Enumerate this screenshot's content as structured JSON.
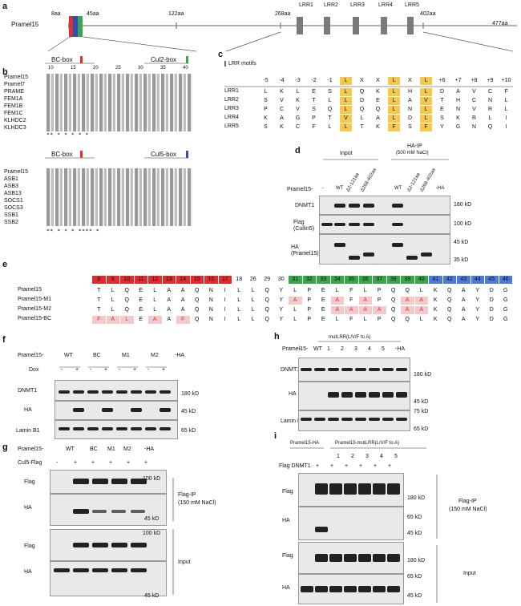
{
  "a": {
    "label": "a",
    "protein": "Pramel15",
    "pos_8": "8aa",
    "pos_45": "45aa",
    "pos_122": "122aa",
    "pos_268": "268aa",
    "pos_402": "402aa",
    "pos_477": "477aa",
    "lrr": [
      "LRR1",
      "LRR2",
      "LRR3",
      "LRR4",
      "LRR5"
    ]
  },
  "b": {
    "label": "b",
    "bc_box": "BC-box",
    "cul2_box": "Cul2-box",
    "cul5_box": "Cul5-box",
    "ticks_top": [
      "10",
      "15",
      "20",
      "25",
      "30",
      "35",
      "40"
    ],
    "names_top": [
      "Pramel15",
      "Pramel7",
      "PRAME",
      "FEM1A",
      "FEM1B",
      "FEM1C",
      "KLHDC2",
      "KLHDC3"
    ],
    "names_bottom": [
      "Pramel15",
      "ASB1",
      "ASB3",
      "ASB13",
      "SOCS1",
      "SOCS3",
      "SSB1",
      "SSB2"
    ],
    "stars_top": "**  *   *          *  *   *",
    "stars_bottom": "**  *   *         *   ****  *"
  },
  "c": {
    "label": "c",
    "title": "LRR motifs",
    "positions": [
      "-5",
      "-4",
      "-3",
      "-2",
      "-1",
      "L",
      "X",
      "X",
      "L",
      "X",
      "L",
      "+6",
      "+7",
      "+8",
      "+9",
      "+10"
    ],
    "rows": [
      {
        "name": "LRR1",
        "res": [
          "L",
          "K",
          "L",
          "E",
          "S",
          "L",
          "Q",
          "K",
          "L",
          "H",
          "L",
          "D",
          "A",
          "V",
          "C",
          "F"
        ]
      },
      {
        "name": "LRR2",
        "res": [
          "S",
          "V",
          "K",
          "T",
          "L",
          "L",
          "D",
          "E",
          "L",
          "A",
          "V",
          "T",
          "H",
          "C",
          "N",
          "L"
        ]
      },
      {
        "name": "LRR3",
        "res": [
          "P",
          "C",
          "V",
          "S",
          "Q",
          "L",
          "Q",
          "Q",
          "L",
          "N",
          "L",
          "E",
          "N",
          "V",
          "R",
          "L"
        ]
      },
      {
        "name": "LRR4",
        "res": [
          "K",
          "A",
          "G",
          "P",
          "T",
          "V",
          "L",
          "A",
          "L",
          "D",
          "L",
          "S",
          "K",
          "R",
          "L",
          "I"
        ]
      },
      {
        "name": "LRR5",
        "res": [
          "S",
          "K",
          "C",
          "F",
          "L",
          "L",
          "T",
          "K",
          "F",
          "S",
          "F",
          "Y",
          "G",
          "N",
          "Q",
          "I"
        ]
      }
    ]
  },
  "d": {
    "label": "d",
    "input": "Input",
    "ip": "HA-IP",
    "ip_cond": "(500 mM NaCl)",
    "row_label": "Pramel15-",
    "lanes": [
      "-",
      "WT",
      "Δ2-121aa",
      "Δ268-402aa",
      "WT",
      "Δ2-121aa",
      "Δ268-402aa",
      "-HA"
    ],
    "blots": [
      "DNMT1",
      "Flag\n(Cullin5)",
      "HA\n(Pramel15)"
    ],
    "mw": [
      "180 kD",
      "100 kD",
      "45 kD",
      "35 kD"
    ]
  },
  "e": {
    "label": "e",
    "header": [
      "8",
      "9",
      "10",
      "11",
      "12",
      "13",
      "14",
      "15",
      "16",
      "17",
      "18",
      "26",
      "29",
      "30",
      "31",
      "32",
      "33",
      "34",
      "35",
      "36",
      "37",
      "38",
      "39",
      "40",
      "41",
      "42",
      "43",
      "44",
      "45",
      "46"
    ],
    "rows": [
      {
        "name": "Pramel15",
        "res": [
          "T",
          "L",
          "Q",
          "E",
          "L",
          "A",
          "A",
          "Q",
          "N",
          "I",
          "L",
          "L",
          "Q",
          "Y",
          "L",
          "P",
          "E",
          "L",
          "F",
          "L",
          "P",
          "Q",
          "Q",
          "L",
          "K",
          "Q",
          "A",
          "Y",
          "D",
          "G"
        ]
      },
      {
        "name": "Pramel15-M1",
        "res": [
          "T",
          "L",
          "Q",
          "E",
          "L",
          "A",
          "A",
          "Q",
          "N",
          "I",
          "L",
          "L",
          "Q",
          "Y",
          "A",
          "P",
          "E",
          "A",
          "F",
          "A",
          "P",
          "Q",
          "A",
          "A",
          "K",
          "Q",
          "A",
          "Y",
          "D",
          "G"
        ]
      },
      {
        "name": "Pramel15-M2",
        "res": [
          "T",
          "L",
          "Q",
          "E",
          "L",
          "A",
          "A",
          "Q",
          "N",
          "I",
          "L",
          "L",
          "Q",
          "Y",
          "L",
          "P",
          "E",
          "A",
          "A",
          "A",
          "A",
          "Q",
          "A",
          "A",
          "K",
          "Q",
          "A",
          "Y",
          "D",
          "G"
        ]
      },
      {
        "name": "Pramel15-BC",
        "res": [
          "F",
          "A",
          "L",
          "E",
          "A",
          "A",
          "F",
          "Q",
          "N",
          "I",
          "L",
          "L",
          "Q",
          "Y",
          "L",
          "P",
          "E",
          "L",
          "F",
          "L",
          "P",
          "Q",
          "Q",
          "L",
          "K",
          "Q",
          "A",
          "Y",
          "D",
          "G"
        ]
      }
    ]
  },
  "f": {
    "label": "f",
    "row1": "Pramel15-",
    "row2": "Dox",
    "groups": [
      "WT",
      "BC",
      "M1",
      "M2"
    ],
    "ctrl": "-HA",
    "signs": [
      "-",
      "+",
      "-",
      "+",
      "-",
      "+",
      "-",
      "+"
    ],
    "blots": [
      "DNMT1",
      "HA",
      "Lamin B1"
    ],
    "mw": [
      "180 kD",
      "45 kD",
      "65 kD"
    ]
  },
  "g": {
    "label": "g",
    "row1": "Pramel15-",
    "row2": "Cul5-Flag",
    "lanes": [
      "WT",
      "BC",
      "M1",
      "M2",
      "-HA"
    ],
    "signs": [
      "-",
      "+",
      "+",
      "+",
      "+",
      "+"
    ],
    "blots": [
      "Flag",
      "HA",
      "Flag",
      "HA"
    ],
    "ip": "Flag-IP",
    "ip_cond": "(150 mM NaCl)",
    "input": "Input",
    "mw": [
      "100 kD",
      "45 kD",
      "100 kD",
      "45 kD"
    ]
  },
  "h": {
    "label": "h",
    "row1": "Pramel15-",
    "mut": "mutLRR(L/V/F to A)",
    "lanes": [
      "-",
      "WT",
      "1",
      "2",
      "3",
      "4",
      "5",
      "-HA"
    ],
    "blots": [
      "DNMT1",
      "HA",
      "Lamin B1"
    ],
    "mw": [
      "180 kD",
      "45 kD",
      "75 kD",
      "65 kD"
    ]
  },
  "i": {
    "label": "i",
    "g1": "Pramel15-HA",
    "g2": "Pramel15-mutLRR(L/V/F to A)",
    "row2": "Flag DNMT1",
    "nums": [
      "1",
      "2",
      "3",
      "4",
      "5"
    ],
    "signs": [
      "-",
      "+",
      "+",
      "+",
      "+",
      "+",
      "+"
    ],
    "blots": [
      "Flag",
      "HA",
      "Flag",
      "HA"
    ],
    "ip": "Flag-IP",
    "ip_cond": "(150 mM NaCl)",
    "input": "Input",
    "mw": [
      "180 kD",
      "65 kD",
      "45 kD",
      "180 kD",
      "65 kD",
      "45 kD"
    ]
  }
}
